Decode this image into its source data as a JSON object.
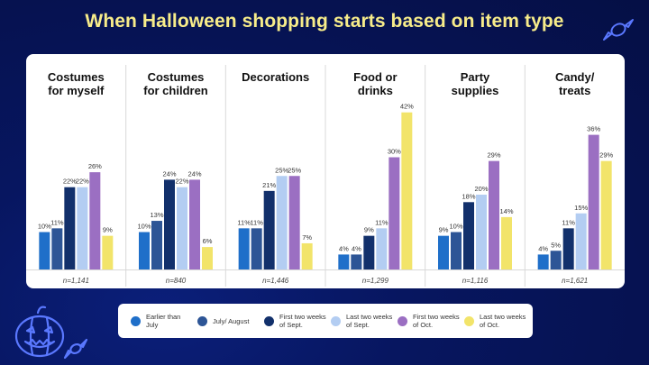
{
  "title": "When Halloween shopping starts based on item type",
  "colors": {
    "panel_bg": "#ffffff",
    "divider": "#d9d9d9",
    "series": [
      "#1f6fc9",
      "#2d5596",
      "#12306b",
      "#b3cdf2",
      "#9b6fc2",
      "#f2e46a"
    ]
  },
  "legend": [
    {
      "label": "Earlier than July"
    },
    {
      "label": "July/ August"
    },
    {
      "label": "First two weeks of Sept."
    },
    {
      "label": "Last two weeks of Sept."
    },
    {
      "label": "First two weeks of Oct."
    },
    {
      "label": "Last two weeks of Oct."
    }
  ],
  "decor_icons": [
    "candy-icon",
    "pumpkin-icon"
  ],
  "chart_data": {
    "type": "bar",
    "grid": false,
    "ylim": [
      0,
      45
    ],
    "series_names": [
      "Earlier than July",
      "July/ August",
      "First two weeks of Sept.",
      "Last two weeks of Sept.",
      "First two weeks of Oct.",
      "Last two weeks of Oct."
    ],
    "groups": [
      {
        "title": [
          "Costumes",
          "for myself"
        ],
        "n": "n=1,141",
        "values": [
          10,
          11,
          22,
          22,
          26,
          9
        ]
      },
      {
        "title": [
          "Costumes",
          "for children"
        ],
        "n": "n=840",
        "values": [
          10,
          13,
          24,
          22,
          24,
          6
        ]
      },
      {
        "title": [
          "Decorations"
        ],
        "n": "n=1,446",
        "values": [
          11,
          11,
          21,
          25,
          25,
          7
        ]
      },
      {
        "title": [
          "Food or",
          "drinks"
        ],
        "n": "n=1,299",
        "values": [
          4,
          4,
          9,
          11,
          30,
          42
        ]
      },
      {
        "title": [
          "Party",
          "supplies"
        ],
        "n": "n=1,116",
        "values": [
          9,
          10,
          18,
          20,
          29,
          14
        ]
      },
      {
        "title": [
          "Candy/",
          "treats"
        ],
        "n": "n=1,621",
        "values": [
          4,
          5,
          11,
          15,
          36,
          29
        ]
      }
    ]
  }
}
